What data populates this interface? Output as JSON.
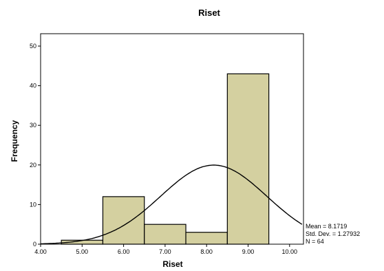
{
  "chart_data": {
    "type": "bar",
    "title": "Riset",
    "xlabel": "Riset",
    "ylabel": "Frequency",
    "xlim": [
      4.0,
      10.0
    ],
    "ylim": [
      0,
      50
    ],
    "xticks": [
      "4.00",
      "5.00",
      "6.00",
      "7.00",
      "8.00",
      "9.00",
      "10.00"
    ],
    "yticks": [
      "0",
      "10",
      "20",
      "30",
      "40",
      "50"
    ],
    "bins": [
      {
        "x0": 4.5,
        "x1": 5.5,
        "value": 1
      },
      {
        "x0": 5.5,
        "x1": 6.5,
        "value": 12
      },
      {
        "x0": 6.5,
        "x1": 7.5,
        "value": 5
      },
      {
        "x0": 7.5,
        "x1": 8.5,
        "value": 3
      },
      {
        "x0": 8.5,
        "x1": 9.5,
        "value": 43
      }
    ],
    "normal_curve": {
      "mean": 8.1719,
      "std": 1.27932,
      "n": 64,
      "bin_width": 1.0,
      "x_range": [
        4.0,
        10.3
      ]
    },
    "bar_color": "#d4d0a0",
    "grid": false,
    "stats": {
      "mean": "Mean = 8.1719",
      "std_dev": "Std. Dev. = 1.27932",
      "n": "N = 64"
    }
  }
}
